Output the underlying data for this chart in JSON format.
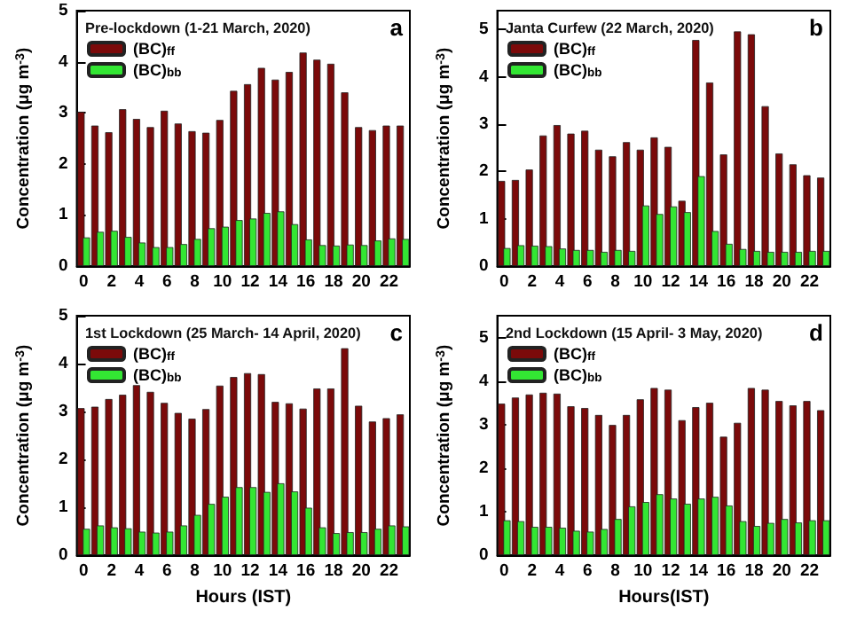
{
  "chart_data": [
    {
      "type": "bar",
      "title": "Pre-lockdown (1-21 March, 2020)",
      "ylabel": "Concentration (μg m$^{-3}$)",
      "annotations": [
        "a"
      ],
      "categories": [
        "0",
        null,
        "2",
        null,
        "4",
        null,
        "6",
        null,
        "8",
        null,
        "10",
        null,
        "12",
        null,
        "14",
        null,
        "16",
        null,
        "18",
        null,
        "20",
        null,
        "22",
        null
      ],
      "ylim": [
        0,
        5
      ],
      "yticks": [
        0,
        1,
        2,
        3,
        4,
        5
      ],
      "legend": "top left",
      "grid": false,
      "series": [
        {
          "name": "(BC)$_{ff}$",
          "color": "#7b0a0a",
          "values": [
            3.02,
            2.75,
            2.62,
            3.07,
            2.88,
            2.72,
            3.04,
            2.79,
            2.64,
            2.61,
            2.86,
            3.43,
            3.56,
            3.88,
            3.65,
            3.8,
            4.18,
            4.04,
            3.96,
            3.4,
            2.72,
            2.66,
            2.75,
            2.75
          ]
        },
        {
          "name": "(BC)$_{bb}$",
          "color": "#33e633",
          "values": [
            0.56,
            0.67,
            0.69,
            0.57,
            0.46,
            0.37,
            0.37,
            0.43,
            0.53,
            0.74,
            0.77,
            0.9,
            0.93,
            1.04,
            1.07,
            0.82,
            0.52,
            0.41,
            0.4,
            0.42,
            0.41,
            0.5,
            0.54,
            0.53
          ]
        }
      ]
    },
    {
      "type": "bar",
      "title": "Janta Curfew (22 March, 2020)",
      "ylabel": "Concentration (μg m$^{-3}$)",
      "annotations": [
        "b"
      ],
      "categories": [
        "0",
        null,
        "2",
        null,
        "4",
        null,
        "6",
        null,
        "8",
        null,
        "10",
        null,
        "12",
        null,
        "14",
        null,
        "16",
        null,
        "18",
        null,
        "20",
        null,
        "22",
        null
      ],
      "ylim": [
        0,
        5.4
      ],
      "yticks": [
        0,
        1,
        2,
        3,
        4,
        5
      ],
      "legend": "top left",
      "grid": false,
      "series": [
        {
          "name": "(BC)$_{ff}$",
          "color": "#7b0a0a",
          "values": [
            1.8,
            1.82,
            2.04,
            2.76,
            2.98,
            2.8,
            2.86,
            2.46,
            2.32,
            2.62,
            2.46,
            2.72,
            2.52,
            1.38,
            4.78,
            3.88,
            2.36,
            4.96,
            4.9,
            3.38,
            2.38,
            2.15,
            1.92,
            1.87
          ]
        },
        {
          "name": "(BC)$_{bb}$",
          "color": "#33e633",
          "values": [
            0.38,
            0.44,
            0.43,
            0.42,
            0.37,
            0.34,
            0.34,
            0.3,
            0.34,
            0.32,
            1.28,
            1.1,
            1.26,
            1.14,
            1.9,
            0.74,
            0.47,
            0.36,
            0.32,
            0.3,
            0.3,
            0.3,
            0.32,
            0.32
          ]
        }
      ]
    },
    {
      "type": "bar",
      "title": "1st Lockdown (25 March- 14 April, 2020)",
      "xlabel": "Hours (IST)",
      "ylabel": "Concentration (μg m$^{-3}$)",
      "annotations": [
        "c"
      ],
      "categories": [
        "0",
        null,
        "2",
        null,
        "4",
        null,
        "6",
        null,
        "8",
        null,
        "10",
        null,
        "12",
        null,
        "14",
        null,
        "16",
        null,
        "18",
        null,
        "20",
        null,
        "22",
        null
      ],
      "ylim": [
        0,
        5
      ],
      "yticks": [
        0,
        1,
        2,
        3,
        4,
        5
      ],
      "legend": "top left",
      "grid": false,
      "series": [
        {
          "name": "(BC)$_{ff}$",
          "color": "#7b0a0a",
          "values": [
            3.07,
            3.1,
            3.26,
            3.35,
            3.55,
            3.41,
            3.18,
            2.97,
            2.85,
            3.05,
            3.54,
            3.72,
            3.8,
            3.78,
            3.2,
            3.17,
            3.06,
            3.48,
            3.48,
            4.32,
            3.12,
            2.79,
            2.86,
            2.94
          ]
        },
        {
          "name": "(BC)$_{bb}$",
          "color": "#33e633",
          "values": [
            0.55,
            0.62,
            0.58,
            0.56,
            0.49,
            0.47,
            0.49,
            0.62,
            0.84,
            1.07,
            1.22,
            1.42,
            1.42,
            1.32,
            1.5,
            1.33,
            0.99,
            0.58,
            0.46,
            0.48,
            0.48,
            0.55,
            0.62,
            0.6
          ]
        }
      ]
    },
    {
      "type": "bar",
      "title": "2nd Lockdown (15 April- 3 May, 2020)",
      "xlabel": "Hours(IST)",
      "ylabel": "Concentration (μg m$^{-3}$)",
      "annotations": [
        "d"
      ],
      "categories": [
        "0",
        null,
        "2",
        null,
        "4",
        null,
        "6",
        null,
        "8",
        null,
        "10",
        null,
        "12",
        null,
        "14",
        null,
        "16",
        null,
        "18",
        null,
        "20",
        null,
        "22",
        null
      ],
      "ylim": [
        0,
        5.5
      ],
      "yticks": [
        0,
        1,
        2,
        3,
        4,
        5
      ],
      "legend": "top left",
      "grid": false,
      "series": [
        {
          "name": "(BC)$_{ff}$",
          "color": "#7b0a0a",
          "values": [
            3.48,
            3.62,
            3.69,
            3.73,
            3.71,
            3.42,
            3.38,
            3.22,
            2.99,
            3.22,
            3.58,
            3.84,
            3.8,
            3.1,
            3.4,
            3.5,
            2.72,
            3.04,
            3.84,
            3.8,
            3.54,
            3.44,
            3.54,
            3.33
          ]
        },
        {
          "name": "(BC)$_{bb}$",
          "color": "#33e633",
          "values": [
            0.8,
            0.78,
            0.65,
            0.65,
            0.63,
            0.56,
            0.54,
            0.6,
            0.83,
            1.12,
            1.22,
            1.4,
            1.3,
            1.18,
            1.3,
            1.34,
            1.14,
            0.78,
            0.67,
            0.74,
            0.83,
            0.75,
            0.8,
            0.8
          ]
        }
      ]
    }
  ]
}
